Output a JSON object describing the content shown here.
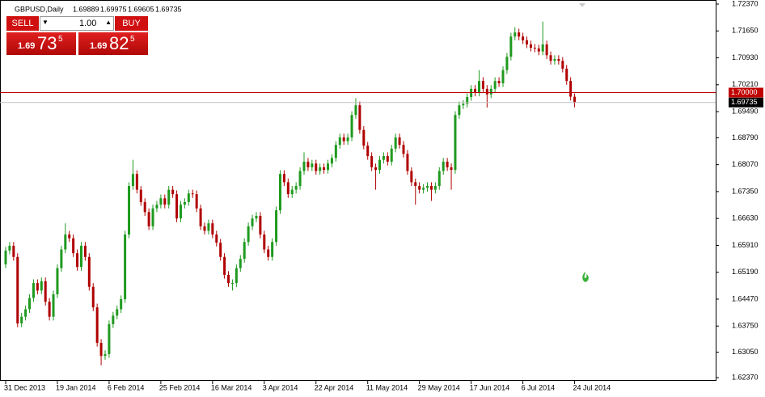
{
  "chart_data": {
    "type": "candlestick",
    "symbol": "GBPUSD,Daily",
    "categories": [
      "31 Dec 2013",
      null,
      null,
      null,
      null,
      null,
      null,
      null,
      null,
      null,
      null,
      null,
      null,
      "19 Jan 2014",
      null,
      null,
      null,
      null,
      null,
      null,
      null,
      null,
      null,
      null,
      null,
      null,
      "6 Feb 2014",
      null,
      null,
      null,
      null,
      null,
      null,
      null,
      null,
      null,
      null,
      null,
      null,
      "25 Feb 2014",
      null,
      null,
      null,
      null,
      null,
      null,
      null,
      null,
      null,
      null,
      null,
      null,
      "16 Mar 2014",
      null,
      null,
      null,
      null,
      null,
      null,
      null,
      null,
      null,
      null,
      null,
      null,
      "3 Apr 2014",
      null,
      null,
      null,
      null,
      null,
      null,
      null,
      null,
      null,
      null,
      null,
      null,
      "22 Apr 2014",
      null,
      null,
      null,
      null,
      null,
      null,
      null,
      null,
      null,
      null,
      null,
      null,
      "11 May 2014",
      null,
      null,
      null,
      null,
      null,
      null,
      null,
      null,
      null,
      null,
      null,
      null,
      "29 May 2014",
      null,
      null,
      null,
      null,
      null,
      null,
      null,
      null,
      null,
      null,
      null,
      null,
      "17 Jun 2014",
      null,
      null,
      null,
      null,
      null,
      null,
      null,
      null,
      null,
      null,
      null,
      null,
      "6 Jul 2014",
      null,
      null,
      null,
      null,
      null,
      null,
      null,
      null,
      null,
      null,
      null,
      null,
      "24 Jul 2014"
    ],
    "open": [
      1.654,
      1.6577,
      1.659,
      1.656,
      1.6382,
      1.64,
      1.642,
      1.645,
      1.649,
      1.647,
      1.6495,
      1.644,
      1.64,
      1.646,
      1.653,
      1.658,
      1.662,
      1.661,
      1.657,
      1.6533,
      1.659,
      1.656,
      1.648,
      1.6425,
      1.633,
      1.6295,
      1.63,
      1.638,
      1.6403,
      1.642,
      1.6447,
      1.662,
      1.675,
      1.6782,
      1.674,
      1.6707,
      1.668,
      1.6642,
      1.669,
      1.67,
      1.6717,
      1.67,
      1.674,
      1.6728,
      1.6663,
      1.67,
      1.6707,
      1.673,
      1.6728,
      1.669,
      1.6642,
      1.663,
      1.665,
      1.662,
      1.6598,
      1.656,
      1.6512,
      1.649,
      1.649,
      1.653,
      1.6555,
      1.66,
      1.6642,
      1.6663,
      1.667,
      1.662,
      1.658,
      1.656,
      1.66,
      1.6685,
      1.6782,
      1.676,
      1.6728,
      1.674,
      1.675,
      1.679,
      1.6815,
      1.68,
      1.681,
      1.679,
      1.68,
      1.6793,
      1.681,
      1.6825,
      1.686,
      1.688,
      1.687,
      1.688,
      1.694,
      1.6966,
      1.69,
      1.6858,
      1.683,
      1.68,
      1.6793,
      1.682,
      1.683,
      1.6815,
      1.685,
      1.688,
      1.686,
      1.6836,
      1.679,
      1.676,
      1.675,
      1.674,
      1.6745,
      1.675,
      1.674,
      1.675,
      1.679,
      1.6815,
      1.68,
      1.6793,
      1.694,
      1.6966,
      1.697,
      1.6988,
      1.701,
      1.7,
      1.7031,
      1.701,
      1.6995,
      1.701,
      1.7031,
      1.7025,
      1.706,
      1.7096,
      1.715,
      1.7161,
      1.715,
      1.714,
      1.7129,
      1.712,
      1.7118,
      1.711,
      1.7129,
      1.71,
      1.7085,
      1.709,
      1.7085,
      1.7064,
      1.7031,
      1.69889
    ],
    "high": [
      1.6587,
      1.66,
      1.66,
      1.657,
      1.641,
      1.643,
      1.646,
      1.65,
      1.65,
      1.6505,
      1.6505,
      1.645,
      1.647,
      1.654,
      1.659,
      1.665,
      1.663,
      1.662,
      1.658,
      1.66,
      1.66,
      1.657,
      1.649,
      1.6435,
      1.634,
      1.631,
      1.639,
      1.6413,
      1.643,
      1.6457,
      1.663,
      1.676,
      1.682,
      1.6792,
      1.675,
      1.6717,
      1.669,
      1.67,
      1.671,
      1.6727,
      1.6727,
      1.675,
      1.675,
      1.6738,
      1.671,
      1.6717,
      1.674,
      1.674,
      1.6738,
      1.67,
      1.6652,
      1.666,
      1.666,
      1.663,
      1.6608,
      1.657,
      1.6522,
      1.65,
      1.654,
      1.6565,
      1.661,
      1.6652,
      1.6673,
      1.668,
      1.668,
      1.663,
      1.659,
      1.661,
      1.6695,
      1.6792,
      1.6792,
      1.677,
      1.675,
      1.676,
      1.68,
      1.684,
      1.6825,
      1.682,
      1.682,
      1.681,
      1.681,
      1.682,
      1.6835,
      1.687,
      1.689,
      1.689,
      1.689,
      1.695,
      1.6985,
      1.6976,
      1.691,
      1.6868,
      1.684,
      1.681,
      1.683,
      1.684,
      1.684,
      1.686,
      1.689,
      1.689,
      1.687,
      1.6846,
      1.68,
      1.677,
      1.676,
      1.6755,
      1.676,
      1.676,
      1.676,
      1.68,
      1.6825,
      1.6825,
      1.681,
      1.695,
      1.6976,
      1.698,
      1.6998,
      1.702,
      1.702,
      1.706,
      1.7041,
      1.702,
      1.702,
      1.7041,
      1.7041,
      1.707,
      1.7106,
      1.716,
      1.7175,
      1.7171,
      1.716,
      1.715,
      1.7139,
      1.713,
      1.7128,
      1.719,
      1.7139,
      1.711,
      1.71,
      1.71,
      1.7095,
      1.7074,
      1.7041,
      1.69975
    ],
    "low": [
      1.653,
      1.6567,
      1.655,
      1.6372,
      1.6372,
      1.639,
      1.641,
      1.644,
      1.646,
      1.646,
      1.643,
      1.639,
      1.639,
      1.645,
      1.652,
      1.657,
      1.66,
      1.656,
      1.6523,
      1.6523,
      1.655,
      1.647,
      1.6415,
      1.632,
      1.627,
      1.6285,
      1.629,
      1.637,
      1.6393,
      1.641,
      1.6437,
      1.661,
      1.674,
      1.673,
      1.6697,
      1.667,
      1.6632,
      1.6632,
      1.668,
      1.669,
      1.669,
      1.669,
      1.6718,
      1.6653,
      1.6653,
      1.669,
      1.6697,
      1.6718,
      1.668,
      1.6632,
      1.662,
      1.662,
      1.661,
      1.6588,
      1.655,
      1.6502,
      1.648,
      1.647,
      1.648,
      1.652,
      1.6545,
      1.659,
      1.6632,
      1.6653,
      1.661,
      1.657,
      1.655,
      1.655,
      1.659,
      1.6675,
      1.675,
      1.6718,
      1.6718,
      1.673,
      1.674,
      1.678,
      1.679,
      1.679,
      1.678,
      1.678,
      1.6783,
      1.6783,
      1.68,
      1.6815,
      1.685,
      1.686,
      1.686,
      1.687,
      1.693,
      1.689,
      1.6848,
      1.682,
      1.679,
      1.674,
      1.6783,
      1.681,
      1.6805,
      1.6805,
      1.684,
      1.685,
      1.6826,
      1.678,
      1.675,
      1.67,
      1.673,
      1.673,
      1.6735,
      1.671,
      1.673,
      1.674,
      1.678,
      1.679,
      1.674,
      1.6783,
      1.693,
      1.6956,
      1.696,
      1.6978,
      1.699,
      1.699,
      1.7,
      1.696,
      1.6985,
      1.7,
      1.7015,
      1.7015,
      1.705,
      1.7086,
      1.714,
      1.714,
      1.713,
      1.7119,
      1.711,
      1.7108,
      1.71,
      1.71,
      1.709,
      1.7075,
      1.7075,
      1.7075,
      1.7054,
      1.7021,
      1.6979,
      1.69605
    ],
    "close": [
      1.6577,
      1.659,
      1.656,
      1.6382,
      1.64,
      1.642,
      1.645,
      1.649,
      1.647,
      1.6495,
      1.644,
      1.64,
      1.646,
      1.653,
      1.658,
      1.662,
      1.661,
      1.657,
      1.6533,
      1.659,
      1.656,
      1.648,
      1.6425,
      1.633,
      1.6295,
      1.63,
      1.638,
      1.6403,
      1.642,
      1.6447,
      1.662,
      1.675,
      1.6782,
      1.674,
      1.6707,
      1.668,
      1.6642,
      1.669,
      1.67,
      1.6717,
      1.67,
      1.674,
      1.6728,
      1.6663,
      1.67,
      1.6707,
      1.673,
      1.6728,
      1.669,
      1.6642,
      1.663,
      1.665,
      1.662,
      1.6598,
      1.656,
      1.6512,
      1.649,
      1.649,
      1.653,
      1.6555,
      1.66,
      1.6642,
      1.6663,
      1.667,
      1.662,
      1.658,
      1.656,
      1.66,
      1.6685,
      1.6782,
      1.676,
      1.6728,
      1.674,
      1.675,
      1.679,
      1.6815,
      1.68,
      1.681,
      1.679,
      1.68,
      1.6793,
      1.681,
      1.6825,
      1.686,
      1.688,
      1.687,
      1.688,
      1.694,
      1.6966,
      1.69,
      1.6858,
      1.683,
      1.68,
      1.6793,
      1.682,
      1.683,
      1.6815,
      1.685,
      1.688,
      1.686,
      1.6836,
      1.679,
      1.676,
      1.675,
      1.674,
      1.6745,
      1.675,
      1.674,
      1.675,
      1.679,
      1.6815,
      1.68,
      1.6793,
      1.694,
      1.6966,
      1.697,
      1.6988,
      1.701,
      1.7,
      1.7031,
      1.701,
      1.6995,
      1.701,
      1.7031,
      1.7025,
      1.706,
      1.7096,
      1.715,
      1.7161,
      1.715,
      1.714,
      1.7129,
      1.712,
      1.7118,
      1.711,
      1.7129,
      1.71,
      1.7085,
      1.709,
      1.7085,
      1.7064,
      1.7031,
      1.6989,
      1.69735
    ],
    "up_color": "#1f9a1f",
    "down_color": "#b00000",
    "ylim": [
      1.6237,
      1.7237
    ],
    "yticks": [
      {
        "value": 1.7237,
        "label": "1.72370"
      },
      {
        "value": 1.7165,
        "label": "1.71650"
      },
      {
        "value": 1.7093,
        "label": "1.70930"
      },
      {
        "value": 1.7021,
        "label": "1.70210"
      },
      {
        "value": 1.6949,
        "label": "1.69490"
      },
      {
        "value": 1.6879,
        "label": "1.68790"
      },
      {
        "value": 1.6807,
        "label": "1.68070"
      },
      {
        "value": 1.6735,
        "label": "1.67350"
      },
      {
        "value": 1.6663,
        "label": "1.66630"
      },
      {
        "value": 1.6591,
        "label": "1.65910"
      },
      {
        "value": 1.6519,
        "label": "1.65190"
      },
      {
        "value": 1.6447,
        "label": "1.64470"
      },
      {
        "value": 1.6375,
        "label": "1.63750"
      },
      {
        "value": 1.6305,
        "label": "1.63050"
      },
      {
        "value": 1.6237,
        "label": "1.62370"
      }
    ],
    "levels": [
      {
        "value": 1.7,
        "label": "1.70000",
        "color": "#c00000"
      }
    ],
    "bid_line": {
      "value": 1.69735,
      "color": "#c0c0c0"
    }
  },
  "trade_panel": {
    "sell": "SELL",
    "buy": "BUY",
    "lot": "1.00",
    "bid": {
      "big": "1.69",
      "pips": "73",
      "fraction": "5"
    },
    "ask": {
      "big": "1.69",
      "pips": "82",
      "fraction": "5"
    }
  }
}
